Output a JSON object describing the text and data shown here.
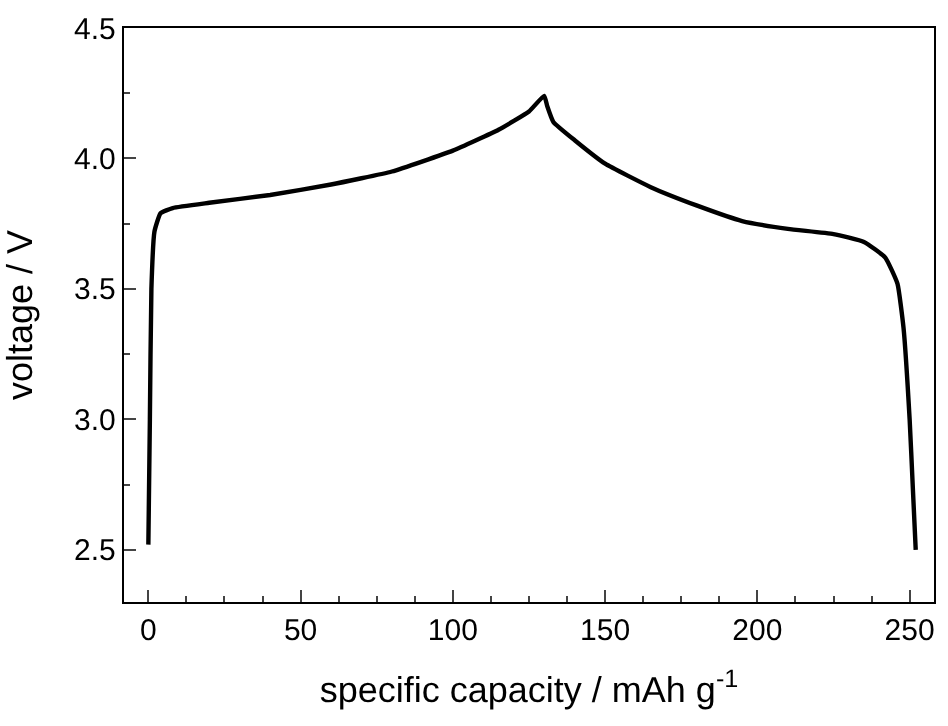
{
  "chart_data": {
    "type": "line",
    "xlabel": "specific capacity / mAh g$^{-1}$",
    "ylabel": "voltage / V",
    "x": [
      0,
      0.5,
      1,
      2,
      4,
      8,
      20,
      40,
      60,
      80,
      100,
      115,
      125,
      130,
      131,
      133,
      140,
      150,
      165,
      180,
      195,
      210,
      225,
      235,
      242,
      246,
      248,
      250,
      251,
      252
    ],
    "series": [
      {
        "color": "#000000",
        "values": [
          2.52,
          3.0,
          3.5,
          3.72,
          3.79,
          3.81,
          3.83,
          3.86,
          3.9,
          3.95,
          4.03,
          4.11,
          4.18,
          4.24,
          4.2,
          4.14,
          4.07,
          3.98,
          3.89,
          3.82,
          3.76,
          3.73,
          3.71,
          3.68,
          3.62,
          3.52,
          3.35,
          3.0,
          2.75,
          2.5
        ]
      }
    ],
    "xlim": [
      -8,
      258
    ],
    "ylim": [
      2.3,
      4.5
    ],
    "xticks": [
      0,
      50,
      100,
      150,
      200,
      250
    ],
    "yticks": [
      2.5,
      {
        "value": 3,
        "label": "3.0"
      },
      3.5,
      {
        "value": 4,
        "label": "4.0"
      },
      4.5
    ],
    "legend": false,
    "marker": "none",
    "line_style": "solid"
  }
}
